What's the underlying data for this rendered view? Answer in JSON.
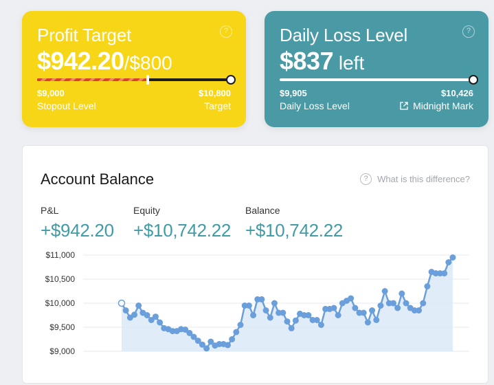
{
  "profit_target": {
    "title": "Profit Target",
    "value": "$942.20",
    "suffix": "/$800",
    "left_value": "$9,000",
    "left_caption": "Stopout Level",
    "right_value": "$10,800",
    "right_caption": "Target",
    "progress_fraction": 0.57,
    "card_color": "#f7d618",
    "help_icon": "question-circle-icon"
  },
  "daily_loss": {
    "title": "Daily Loss Level",
    "value": "$837",
    "suffix": " left",
    "left_value": "$9,905",
    "left_caption": "Daily Loss Level",
    "right_value": "$10,426",
    "right_caption": "Midnight Mark",
    "progress_fraction": 1.0,
    "card_color": "#4a9aa6",
    "link_icon": "external-link-icon",
    "help_icon": "question-circle-icon"
  },
  "account_balance": {
    "title": "Account Balance",
    "help_text": "What is this difference?",
    "stats": [
      {
        "label": "P&L",
        "value": "+$942.20"
      },
      {
        "label": "Equity",
        "value": "+$10,742.22"
      },
      {
        "label": "Balance",
        "value": "+$10,742.22"
      }
    ],
    "accent_color": "#3f9ba6"
  },
  "chart_data": {
    "type": "area",
    "yticks": [
      "$11,000",
      "$10,500",
      "$10,000",
      "$9,500",
      "$9,000"
    ],
    "ylim": [
      9000,
      11000
    ],
    "grid": true,
    "line_color": "#6a9fdc",
    "fill_color": "#dbe9f6",
    "values": [
      10000,
      9850,
      9700,
      9760,
      9950,
      9800,
      9750,
      9650,
      9720,
      9600,
      9480,
      9460,
      9420,
      9420,
      9460,
      9450,
      9380,
      9300,
      9220,
      9140,
      9060,
      9200,
      9120,
      9150,
      9150,
      9130,
      9250,
      9400,
      9550,
      9950,
      9950,
      9750,
      10080,
      10080,
      9850,
      9700,
      10000,
      9800,
      9800,
      9620,
      9480,
      9640,
      9780,
      9750,
      9750,
      9650,
      9650,
      9550,
      9880,
      9880,
      9900,
      9750,
      10000,
      10050,
      10100,
      9900,
      9800,
      9800,
      9600,
      9850,
      9650,
      9950,
      10250,
      10000,
      10000,
      9900,
      10200,
      10000,
      9900,
      9850,
      9850,
      10000,
      10350,
      10650,
      10620,
      10620,
      10620,
      10850,
      10950
    ]
  }
}
